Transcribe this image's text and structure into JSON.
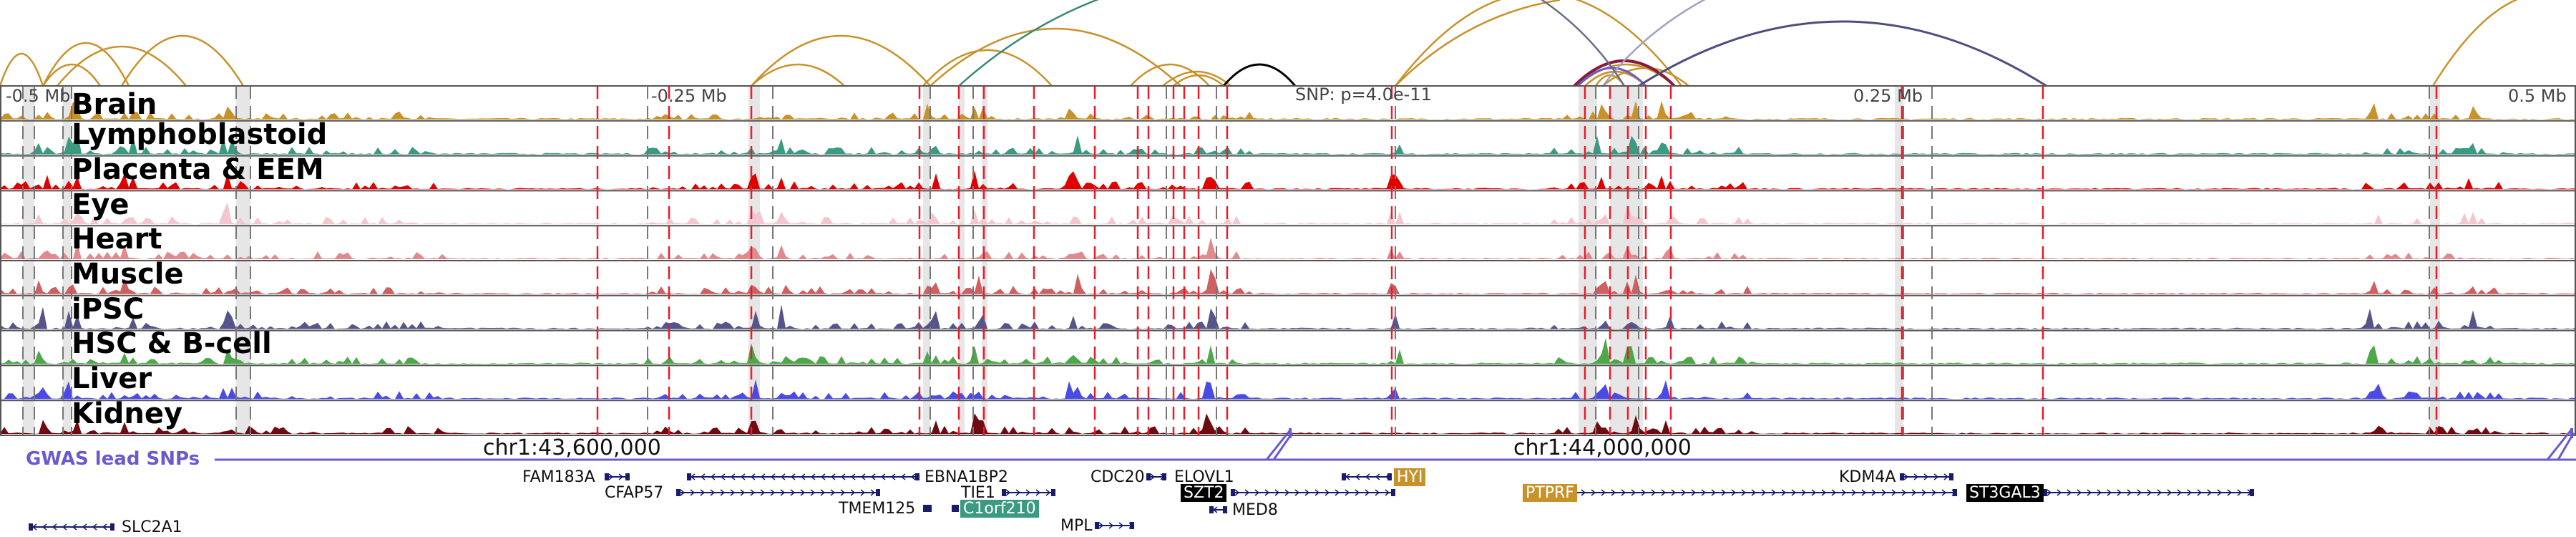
{
  "coordinates": {
    "top_ruler": [
      "-0.5 Mb",
      "-0.25 Mb",
      "0.25 Mb",
      "0.5 Mb"
    ],
    "snp_label": "SNP: p=4.0e-11",
    "chrom_ticks": [
      "chr1:43,600,000",
      "chr1:44,000,000"
    ]
  },
  "tracks": [
    {
      "name": "Brain",
      "color": "#c8922a"
    },
    {
      "name": "Lymphoblastoid",
      "color": "#3a9a82"
    },
    {
      "name": "Placenta & EEM",
      "color": "#e00000"
    },
    {
      "name": "Eye",
      "color": "#f3c7cf"
    },
    {
      "name": "Heart",
      "color": "#e08a8e"
    },
    {
      "name": "Muscle",
      "color": "#cf5f61"
    },
    {
      "name": "iPSC",
      "color": "#55558a"
    },
    {
      "name": "HSC & B-cell",
      "color": "#4ea84a"
    },
    {
      "name": "Liver",
      "color": "#4a4ae8"
    },
    {
      "name": "Kidney",
      "color": "#6e0a10"
    }
  ],
  "gwas": {
    "label": "GWAS lead SNPs",
    "color": "#6a5acd"
  },
  "genes": [
    {
      "name": "FAM183A",
      "highlight": ""
    },
    {
      "name": "CFAP57",
      "highlight": ""
    },
    {
      "name": "EBNA1BP2",
      "highlight": ""
    },
    {
      "name": "TIE1",
      "highlight": ""
    },
    {
      "name": "C1orf210",
      "highlight": "#3a9a82"
    },
    {
      "name": "TMEM125",
      "highlight": ""
    },
    {
      "name": "CDC20",
      "highlight": ""
    },
    {
      "name": "ELOVL1",
      "highlight": ""
    },
    {
      "name": "SZT2",
      "highlight": "#000000"
    },
    {
      "name": "MED8",
      "highlight": ""
    },
    {
      "name": "MPL",
      "highlight": ""
    },
    {
      "name": "HYI",
      "highlight": "#c8922a"
    },
    {
      "name": "PTPRF",
      "highlight": "#c8922a"
    },
    {
      "name": "KDM4A",
      "highlight": ""
    },
    {
      "name": "ST3GAL3",
      "highlight": "#000000"
    },
    {
      "name": "SLC2A1",
      "highlight": ""
    }
  ]
}
